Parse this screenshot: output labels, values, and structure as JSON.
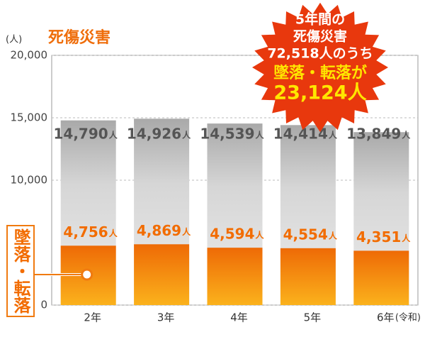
{
  "chart_data": {
    "type": "bar",
    "y_unit": "(人)",
    "x_suffix": "(令和)",
    "value_unit": "人",
    "categories": [
      "2年",
      "3年",
      "4年",
      "5年",
      "6年"
    ],
    "series": [
      {
        "name": "死傷災害",
        "color": "#d4d4d4",
        "values": [
          14790,
          14926,
          14539,
          14414,
          13849
        ],
        "value_labels": [
          "14,790",
          "14,926",
          "14,539",
          "14,414",
          "13,849"
        ]
      },
      {
        "name": "墜落・転落",
        "color": "#f07a10",
        "values": [
          4756,
          4869,
          4594,
          4554,
          4351
        ],
        "value_labels": [
          "4,756",
          "4,869",
          "4,594",
          "4,554",
          "4,351"
        ]
      }
    ],
    "ylim": [
      0,
      20000
    ],
    "yticks": [
      0,
      {
        "value": 10000,
        "label": "10,000"
      },
      {
        "value": 15000,
        "label": "15,000"
      },
      {
        "value": 20000,
        "label": "20,000"
      }
    ],
    "grid": true,
    "annotation": [
      "5年間の",
      "死傷災害",
      "72,518人のうち",
      "墜落・転落が",
      "23,124人"
    ]
  }
}
